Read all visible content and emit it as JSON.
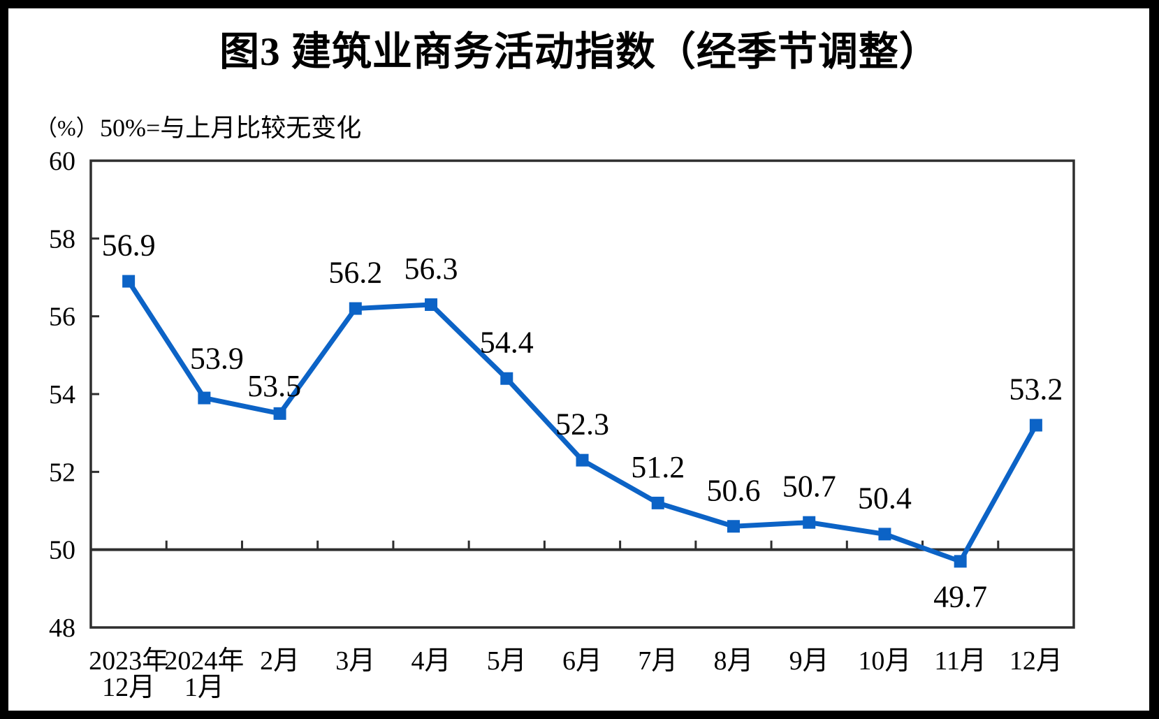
{
  "figure": {
    "title": "图3  建筑业商务活动指数（经季节调整）",
    "unit_label": "（%）",
    "note": "50%=与上月比较无变化"
  },
  "chart_data": {
    "type": "line",
    "title": "图3 建筑业商务活动指数（经季节调整）",
    "subtitle": "50%=与上月比较无变化",
    "ylabel": "（%）",
    "xlabel": "",
    "series_name": "建筑业商务活动指数（经季节调整）",
    "categories": [
      "2023年12月",
      "2024年1月",
      "2月",
      "3月",
      "4月",
      "5月",
      "6月",
      "7月",
      "8月",
      "9月",
      "10月",
      "11月",
      "12月"
    ],
    "category_lines": [
      [
        "2023年",
        "12月"
      ],
      [
        "2024年",
        "1月"
      ],
      [
        "2月"
      ],
      [
        "3月"
      ],
      [
        "4月"
      ],
      [
        "5月"
      ],
      [
        "6月"
      ],
      [
        "7月"
      ],
      [
        "8月"
      ],
      [
        "9月"
      ],
      [
        "10月"
      ],
      [
        "11月"
      ],
      [
        "12月"
      ]
    ],
    "values": [
      56.9,
      53.9,
      53.5,
      56.2,
      56.3,
      54.4,
      52.3,
      51.2,
      50.6,
      50.7,
      50.4,
      49.7,
      53.2
    ],
    "ylim": [
      48,
      60
    ],
    "yticks": [
      48,
      50,
      52,
      54,
      56,
      58,
      60
    ],
    "reference_line_y": 50,
    "grid": false,
    "legend_position": "none",
    "marker": "square",
    "line_color": "#0C63C6",
    "axis_color": "#2E2E2E",
    "text_color": "#000000",
    "background_color": "#FFFFFF",
    "border_color": "#000000"
  }
}
